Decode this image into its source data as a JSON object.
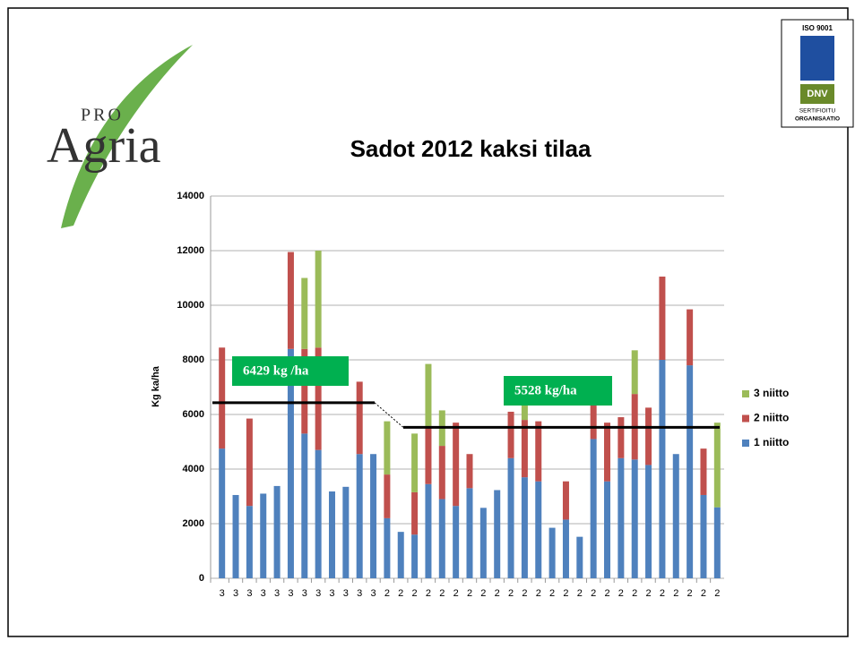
{
  "slide": {
    "logo_small": "PRO",
    "logo_large": "Agria",
    "badge_top": "ISO 9001",
    "badge_mid": "DNV",
    "badge_line1": "SERTIFIOITU",
    "badge_line2": "ORGANISAATIO"
  },
  "chart_data": {
    "type": "bar",
    "stacked": true,
    "title": "Sadot 2012 kaksi tilaa",
    "y_label": "Kg ka/ha",
    "categories": [
      "3",
      "3",
      "3",
      "3",
      "3",
      "3",
      "3",
      "3",
      "3",
      "3",
      "3",
      "3",
      "2",
      "2",
      "2",
      "2",
      "2",
      "2",
      "2",
      "2",
      "2",
      "2",
      "2",
      "2",
      "2",
      "2",
      "2",
      "2",
      "2",
      "2",
      "2",
      "2",
      "2",
      "2",
      "2",
      "2",
      "2"
    ],
    "series": [
      {
        "name": "1 niitto",
        "color": "#4f81bd",
        "values": [
          4750,
          3050,
          2650,
          3100,
          3380,
          8400,
          5300,
          4700,
          3180,
          3350,
          4550,
          4550,
          2200,
          1700,
          1600,
          3450,
          2900,
          2650,
          3300,
          2580,
          3230,
          4400,
          3700,
          3550,
          1850,
          2150,
          1520,
          5100,
          3550,
          4400,
          4350,
          4150,
          8000,
          4550,
          7800,
          3050,
          2600
        ]
      },
      {
        "name": "2 niitto",
        "color": "#c0504d",
        "values": [
          3700,
          0,
          3200,
          0,
          0,
          3550,
          3100,
          3750,
          0,
          0,
          2650,
          0,
          1600,
          0,
          1550,
          2050,
          1950,
          3050,
          1250,
          0,
          0,
          1700,
          2100,
          2200,
          0,
          1400,
          0,
          1300,
          2150,
          1500,
          2400,
          2100,
          3050,
          0,
          2050,
          1700,
          0
        ]
      },
      {
        "name": "3 niitto",
        "color": "#9bbb59",
        "values": [
          0,
          0,
          0,
          0,
          0,
          0,
          2600,
          3550,
          0,
          0,
          0,
          0,
          1950,
          0,
          2150,
          2350,
          1300,
          0,
          0,
          0,
          0,
          0,
          700,
          0,
          0,
          0,
          0,
          0,
          0,
          0,
          1600,
          0,
          0,
          0,
          0,
          0,
          3100
        ]
      }
    ],
    "ylim": [
      0,
      14000
    ],
    "yticks": [
      0,
      2000,
      4000,
      6000,
      8000,
      10000,
      12000,
      14000
    ],
    "grid": true,
    "legend": "right",
    "annotations": [
      {
        "label": "6429 kg /ha",
        "value": 6429
      },
      {
        "label": "5528 kg/ha",
        "value": 5528
      }
    ]
  }
}
